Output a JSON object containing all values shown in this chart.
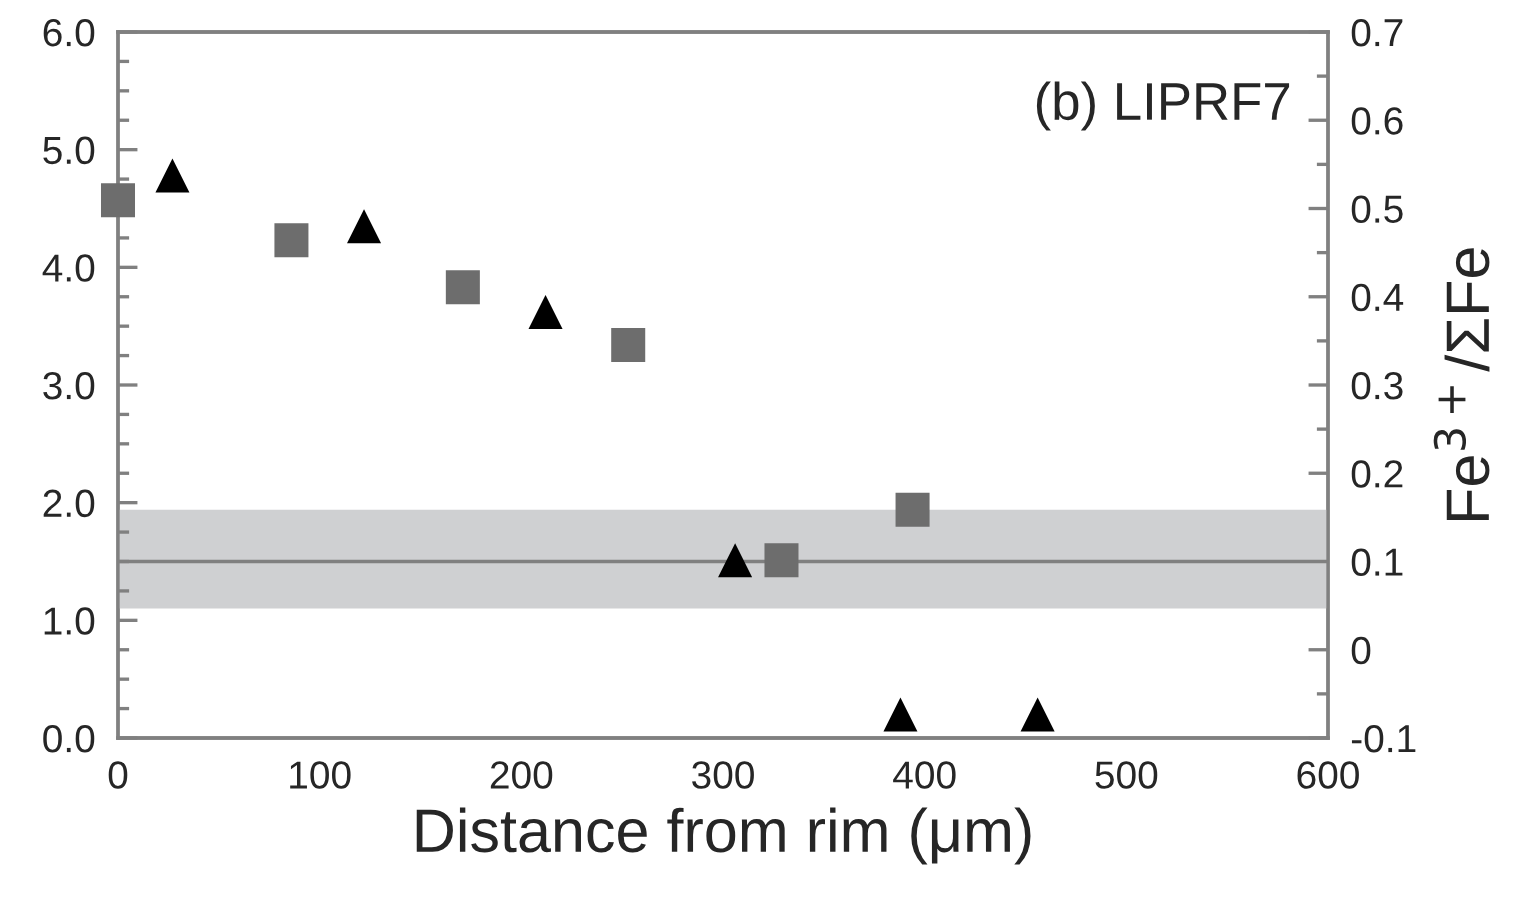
{
  "chart_data": {
    "type": "scatter",
    "xlabel": "Distance from rim (μm)",
    "y2label": "Fe$^{3+}$/ΣFe",
    "annotations": [
      "(b) LIPRF7"
    ],
    "series": [
      {
        "color": "#6d6d6d",
        "marker": "square",
        "x": [
          0,
          86,
          171,
          253,
          329,
          394
        ],
        "values": [
          4.57,
          4.23,
          3.83,
          3.34,
          1.51,
          1.94
        ]
      },
      {
        "color": "#000000",
        "marker": "triangle",
        "x": [
          27,
          122,
          212,
          306,
          388,
          456
        ],
        "values": [
          4.78,
          4.35,
          3.62,
          1.51,
          0.2,
          0.2
        ]
      }
    ],
    "xlim": [
      0,
      600
    ],
    "xticks": [
      0,
      100,
      200,
      300,
      400,
      500,
      600
    ],
    "ylim": [
      0,
      6
    ],
    "yticks": [
      {
        "value": 0,
        "label": "0.0"
      },
      {
        "value": 1,
        "label": "1.0"
      },
      {
        "value": 2,
        "label": "2.0"
      },
      {
        "value": 3,
        "label": "3.0"
      },
      {
        "value": 4,
        "label": "4.0"
      },
      {
        "value": 5,
        "label": "5.0"
      },
      {
        "value": 6,
        "label": "6.0"
      }
    ],
    "y2lim": [
      -0.1,
      0.7
    ],
    "y2ticks": [
      -0.1,
      0,
      0.1,
      0.2,
      0.3,
      0.4,
      0.5,
      0.6,
      0.7
    ],
    "ref_lines": [
      {
        "axis": "y",
        "value": 1.5,
        "color": "#808080"
      }
    ],
    "bands": [
      {
        "axis": "y",
        "from": 1.1,
        "to": 1.94,
        "color": "#cfd0d2"
      }
    ],
    "grid": false,
    "legend": false
  }
}
